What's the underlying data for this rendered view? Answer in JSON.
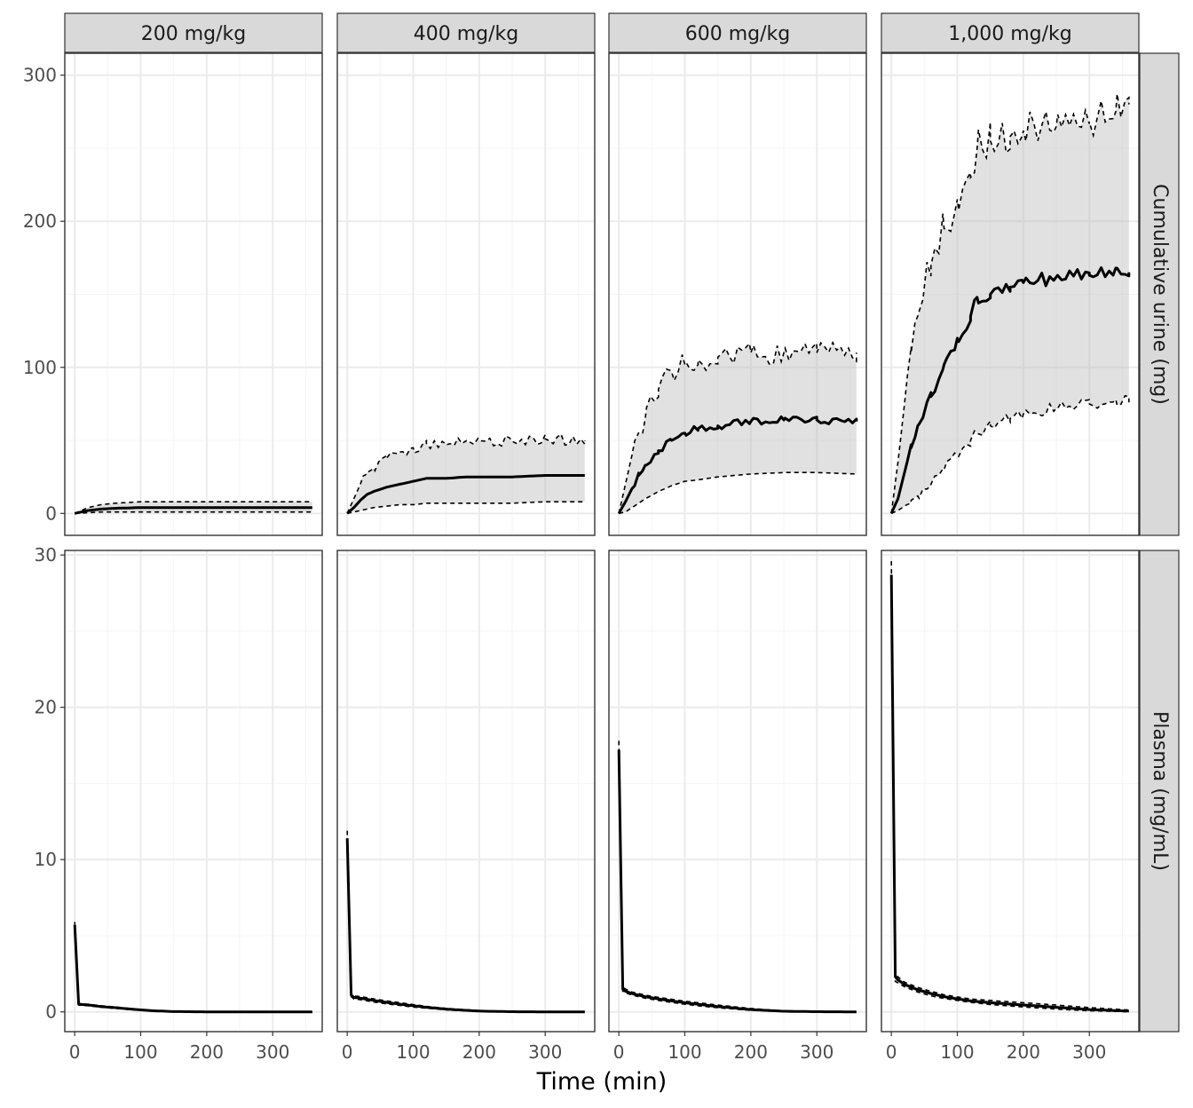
{
  "chart_data": {
    "type": "line",
    "facets": {
      "columns": [
        "200 mg/kg",
        "400 mg/kg",
        "600 mg/kg",
        "1,000 mg/kg"
      ],
      "rows": [
        "Cumulative urine (mg)",
        "Plasma (mg/mL)"
      ]
    },
    "xlabel": "Time (min)",
    "ylabel": "",
    "x_ticks": [
      0,
      100,
      200,
      300
    ],
    "x_range": [
      -15,
      375
    ],
    "rows": [
      {
        "name": "Cumulative urine (mg)",
        "y_ticks": [
          0,
          100,
          200,
          300
        ],
        "y_range": [
          -15,
          315
        ],
        "panels": [
          {
            "column": "200 mg/kg",
            "x": [
              0,
              20,
              40,
              60,
              100,
              150,
              200,
              250,
              300,
              360
            ],
            "median": [
              0,
              2,
              3,
              3.5,
              4,
              4,
              4,
              4,
              4,
              4
            ],
            "lower": [
              0,
              0.5,
              1,
              1,
              1,
              1,
              1,
              1,
              1,
              1
            ],
            "upper": [
              0,
              4,
              6,
              7,
              8,
              8,
              8,
              8,
              8,
              8
            ]
          },
          {
            "column": "400 mg/kg",
            "x": [
              0,
              10,
              20,
              30,
              40,
              60,
              80,
              100,
              120,
              150,
              180,
              200,
              250,
              300,
              360
            ],
            "median": [
              0,
              4,
              9,
              13,
              15,
              18,
              20,
              22,
              24,
              24,
              25,
              25,
              25,
              26,
              26
            ],
            "lower": [
              0,
              1,
              2,
              3,
              4,
              5,
              6,
              6,
              7,
              7,
              7,
              7,
              7,
              8,
              8
            ],
            "upper": [
              0,
              10,
              20,
              28,
              31,
              38,
              42,
              45,
              48,
              47,
              49,
              50,
              49,
              51,
              50
            ],
            "upper_noise": 4
          },
          {
            "column": "600 mg/kg",
            "x": [
              0,
              10,
              20,
              30,
              40,
              60,
              80,
              100,
              120,
              150,
              200,
              250,
              300,
              360
            ],
            "median": [
              0,
              8,
              17,
              26,
              33,
              43,
              50,
              55,
              58,
              60,
              63,
              64,
              64,
              63
            ],
            "lower": [
              0,
              1,
              4,
              7,
              10,
              15,
              19,
              22,
              23,
              25,
              27,
              28,
              28,
              27
            ],
            "upper": [
              0,
              20,
              40,
              55,
              65,
              85,
              97,
              102,
              105,
              107,
              110,
              110,
              110,
              110
            ],
            "upper_noise": 8,
            "median_noise": 2.5
          },
          {
            "column": "1,000 mg/kg",
            "x": [
              0,
              10,
              20,
              30,
              40,
              60,
              80,
              100,
              120,
              130,
              150,
              180,
              200,
              250,
              300,
              340,
              360
            ],
            "median": [
              0,
              10,
              28,
              45,
              60,
              80,
              102,
              120,
              135,
              148,
              150,
              155,
              158,
              162,
              163,
              168,
              165
            ],
            "lower": [
              0,
              2,
              5,
              9,
              12,
              20,
              30,
              40,
              50,
              55,
              60,
              65,
              68,
              72,
              75,
              78,
              76
            ],
            "upper": [
              0,
              35,
              75,
              110,
              135,
              170,
              195,
              215,
              230,
              250,
              255,
              258,
              262,
              265,
              268,
              275,
              280
            ],
            "upper_noise": 13,
            "median_noise": 5,
            "lower_noise": 4
          }
        ]
      },
      {
        "name": "Plasma (mg/mL)",
        "y_ticks": [
          0,
          10,
          20,
          30
        ],
        "y_range": [
          -1.3,
          30.3
        ],
        "panels": [
          {
            "column": "200 mg/kg",
            "x": [
              0,
              6,
              20,
              40,
              60,
              80,
              100,
              120,
              150,
              200,
              250,
              300,
              360
            ],
            "median": [
              5.7,
              0.5,
              0.45,
              0.35,
              0.28,
              0.2,
              0.13,
              0.07,
              0.02,
              0,
              0,
              0,
              0
            ],
            "lower": [
              5.3,
              0.45,
              0.4,
              0.3,
              0.23,
              0.16,
              0.1,
              0.05,
              0.01,
              0,
              0,
              0,
              0
            ],
            "upper": [
              5.9,
              0.55,
              0.5,
              0.4,
              0.32,
              0.24,
              0.16,
              0.09,
              0.03,
              0,
              0,
              0,
              0
            ]
          },
          {
            "column": "400 mg/kg",
            "x": [
              0,
              6,
              10,
              20,
              40,
              60,
              80,
              100,
              120,
              150,
              200,
              250,
              300,
              360
            ],
            "median": [
              11.4,
              1.1,
              0.95,
              0.9,
              0.75,
              0.62,
              0.5,
              0.4,
              0.3,
              0.18,
              0.05,
              0.01,
              0,
              0
            ],
            "lower": [
              11.0,
              1.0,
              0.85,
              0.8,
              0.65,
              0.52,
              0.42,
              0.32,
              0.24,
              0.13,
              0.03,
              0,
              0,
              0
            ],
            "upper": [
              11.9,
              1.2,
              1.05,
              1.0,
              0.85,
              0.72,
              0.6,
              0.48,
              0.36,
              0.23,
              0.08,
              0.02,
              0,
              0
            ]
          },
          {
            "column": "600 mg/kg",
            "x": [
              0,
              6,
              10,
              20,
              40,
              60,
              80,
              100,
              120,
              150,
              200,
              250,
              300,
              360
            ],
            "median": [
              17.2,
              1.5,
              1.35,
              1.2,
              1.0,
              0.85,
              0.72,
              0.6,
              0.5,
              0.35,
              0.15,
              0.04,
              0.01,
              0
            ],
            "lower": [
              16.8,
              1.35,
              1.25,
              1.1,
              0.9,
              0.75,
              0.62,
              0.5,
              0.4,
              0.27,
              0.1,
              0.02,
              0,
              0
            ],
            "upper": [
              17.8,
              1.65,
              1.5,
              1.3,
              1.1,
              0.95,
              0.82,
              0.7,
              0.6,
              0.45,
              0.22,
              0.07,
              0.02,
              0
            ]
          },
          {
            "column": "1,000 mg/kg",
            "x": [
              0,
              6,
              10,
              20,
              40,
              60,
              80,
              100,
              120,
              150,
              200,
              250,
              300,
              360
            ],
            "median": [
              28.7,
              2.3,
              2.1,
              1.8,
              1.45,
              1.2,
              1.0,
              0.85,
              0.72,
              0.6,
              0.45,
              0.3,
              0.15,
              0.05
            ],
            "lower": [
              28.3,
              2.0,
              1.9,
              1.65,
              1.3,
              1.05,
              0.88,
              0.75,
              0.62,
              0.48,
              0.32,
              0.18,
              0.07,
              0.01
            ],
            "upper": [
              29.6,
              2.5,
              2.3,
              1.95,
              1.6,
              1.35,
              1.12,
              0.98,
              0.85,
              0.75,
              0.6,
              0.45,
              0.28,
              0.12
            ]
          }
        ]
      }
    ]
  }
}
